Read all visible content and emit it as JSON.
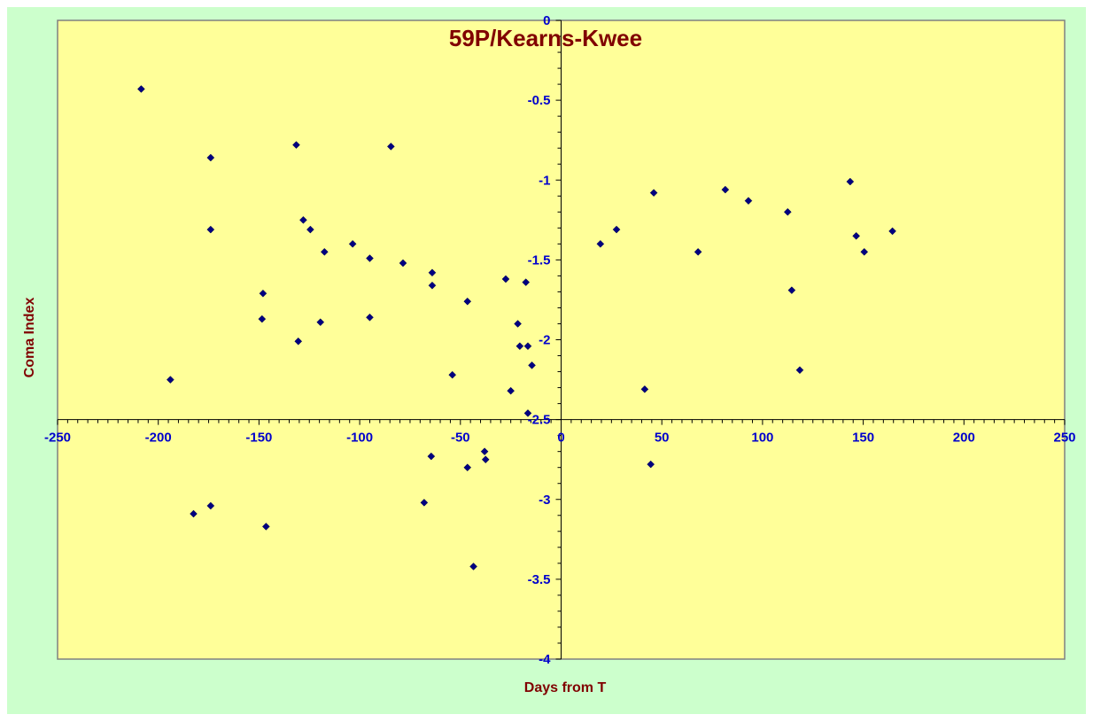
{
  "chart_data": {
    "type": "scatter",
    "title": "59P/Kearns-Kwee",
    "xlabel": "Days from T",
    "ylabel": "Coma Index",
    "xlim": [
      -250,
      250
    ],
    "ylim": [
      -4,
      0
    ],
    "xticks": [
      -250,
      -200,
      -150,
      -100,
      -50,
      0,
      50,
      100,
      150,
      200,
      250
    ],
    "yticks": [
      0,
      -0.5,
      -1,
      -1.5,
      -2,
      -2.5,
      -3,
      -3.5,
      -4
    ],
    "grid": false,
    "legend": "none",
    "colors": {
      "outer_background": "#ccffcc",
      "plot_background": "#ffff99",
      "marker": "#000080",
      "tick_label": "#0000cc",
      "title": "#800000"
    },
    "series": [
      {
        "points": [
          [
            -208.5,
            -0.43
          ],
          [
            -194,
            -2.25
          ],
          [
            -182.5,
            -3.09
          ],
          [
            -174,
            -0.86
          ],
          [
            -174,
            -1.31
          ],
          [
            -174,
            -3.04
          ],
          [
            -148,
            -1.71
          ],
          [
            -148.5,
            -1.87
          ],
          [
            -146.5,
            -3.17
          ],
          [
            -131.5,
            -0.78
          ],
          [
            -130.5,
            -2.01
          ],
          [
            -128,
            -1.25
          ],
          [
            -124.5,
            -1.31
          ],
          [
            -119.5,
            -1.89
          ],
          [
            -117.5,
            -1.45
          ],
          [
            -103.5,
            -1.4
          ],
          [
            -95,
            -1.49
          ],
          [
            -95,
            -1.86
          ],
          [
            -84.5,
            -0.79
          ],
          [
            -78.5,
            -1.52
          ],
          [
            -68,
            -3.02
          ],
          [
            -64,
            -1.58
          ],
          [
            -64,
            -1.66
          ],
          [
            -64.5,
            -2.73
          ],
          [
            -54,
            -2.22
          ],
          [
            -46.5,
            -1.76
          ],
          [
            -46.5,
            -2.8
          ],
          [
            -43.5,
            -3.42
          ],
          [
            -38,
            -2.7
          ],
          [
            -37.5,
            -2.75
          ],
          [
            -27.5,
            -1.62
          ],
          [
            -25,
            -2.32
          ],
          [
            -21.5,
            -1.9
          ],
          [
            -20.5,
            -2.04
          ],
          [
            -17.5,
            -1.64
          ],
          [
            -16.5,
            -2.04
          ],
          [
            -16.5,
            -2.46
          ],
          [
            -14.5,
            -2.16
          ],
          [
            19.5,
            -1.4
          ],
          [
            27.5,
            -1.31
          ],
          [
            41.5,
            -2.31
          ],
          [
            44.5,
            -2.78
          ],
          [
            46,
            -1.08
          ],
          [
            68,
            -1.45
          ],
          [
            81.5,
            -1.06
          ],
          [
            93,
            -1.13
          ],
          [
            112.5,
            -1.2
          ],
          [
            114.5,
            -1.69
          ],
          [
            118.5,
            -2.19
          ],
          [
            143.5,
            -1.01
          ],
          [
            146.5,
            -1.35
          ],
          [
            150.5,
            -1.45
          ],
          [
            164.5,
            -1.32
          ]
        ]
      }
    ]
  }
}
